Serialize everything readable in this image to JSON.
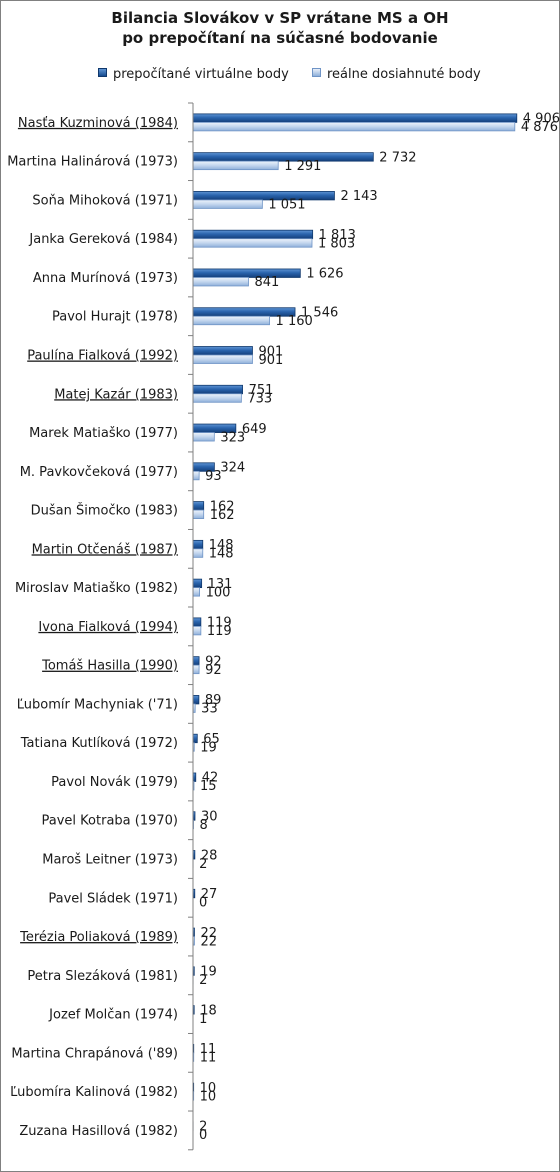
{
  "chart_data": {
    "type": "bar",
    "orientation": "horizontal",
    "title": [
      "Bilancia Slovákov v SP vrátane MS a OH",
      "po prepočítaní na súčasné bodovanie"
    ],
    "legend_position": "top",
    "grid": false,
    "xlim": [
      0,
      5000
    ],
    "categories": [
      "Nasťa Kuzminová (1984)",
      "Martina Halinárová (1973)",
      "Soňa Mihoková (1971)",
      "Janka Gereková (1984)",
      "Anna Murínová (1973)",
      "Pavol Hurajt (1978)",
      "Paulína Fialková (1992)",
      "Matej Kazár (1983)",
      "Marek Matiaško (1977)",
      "M. Pavkovčeková (1977)",
      "Dušan Šimočko (1983)",
      "Martin Otčenáš (1987)",
      "Miroslav Matiaško (1982)",
      "Ivona Fialková (1994)",
      "Tomáš Hasilla (1990)",
      "Ľubomír Machyniak ('71)",
      "Tatiana Kutlíková (1972)",
      "Pavol Novák (1979)",
      "Pavel Kotraba (1970)",
      "Maroš Leitner (1973)",
      "Pavel Sládek (1971)",
      "Terézia Poliaková (1989)",
      "Petra Slezáková (1981)",
      "Jozef Molčan (1974)",
      "Martina Chrapánová ('89)",
      "Ľubomíra Kalinová (1982)",
      "Zuzana Hasillová (1982)"
    ],
    "underlined_categories": [
      "Nasťa Kuzminová (1984)",
      "Paulína Fialková (1992)",
      "Matej Kazár (1983)",
      "Martin Otčenáš (1987)",
      "Ivona Fialková (1994)",
      "Tomáš Hasilla (1990)",
      "Terézia Poliaková (1989)"
    ],
    "series": [
      {
        "name": "prepočítané virtuálne body",
        "color": "#1f5aa6",
        "values": [
          4906,
          2732,
          2143,
          1813,
          1626,
          1546,
          901,
          751,
          649,
          324,
          162,
          148,
          131,
          119,
          92,
          89,
          65,
          42,
          30,
          28,
          27,
          22,
          19,
          18,
          11,
          10,
          2
        ],
        "labels": [
          "4 906",
          "2 732",
          "2 143",
          "1 813",
          "1 626",
          "1 546",
          "901",
          "751",
          "649",
          "324",
          "162",
          "148",
          "131",
          "119",
          "92",
          "89",
          "65",
          "42",
          "30",
          "28",
          "27",
          "22",
          "19",
          "18",
          "11",
          "10",
          "2"
        ]
      },
      {
        "name": "reálne dosiahnuté body",
        "color": "#b9cde9",
        "values": [
          4876,
          1291,
          1051,
          1803,
          841,
          1160,
          901,
          733,
          323,
          93,
          162,
          148,
          100,
          119,
          92,
          33,
          19,
          15,
          8,
          2,
          0,
          22,
          2,
          1,
          11,
          10,
          0
        ],
        "labels": [
          "4 876",
          "1 291",
          "1 051",
          "1 803",
          "841",
          "1 160",
          "901",
          "733",
          "323",
          "93",
          "162",
          "148",
          "100",
          "119",
          "92",
          "33",
          "19",
          "15",
          "8",
          "2",
          "0",
          "22",
          "2",
          "1",
          "11",
          "10",
          "0"
        ]
      }
    ]
  }
}
